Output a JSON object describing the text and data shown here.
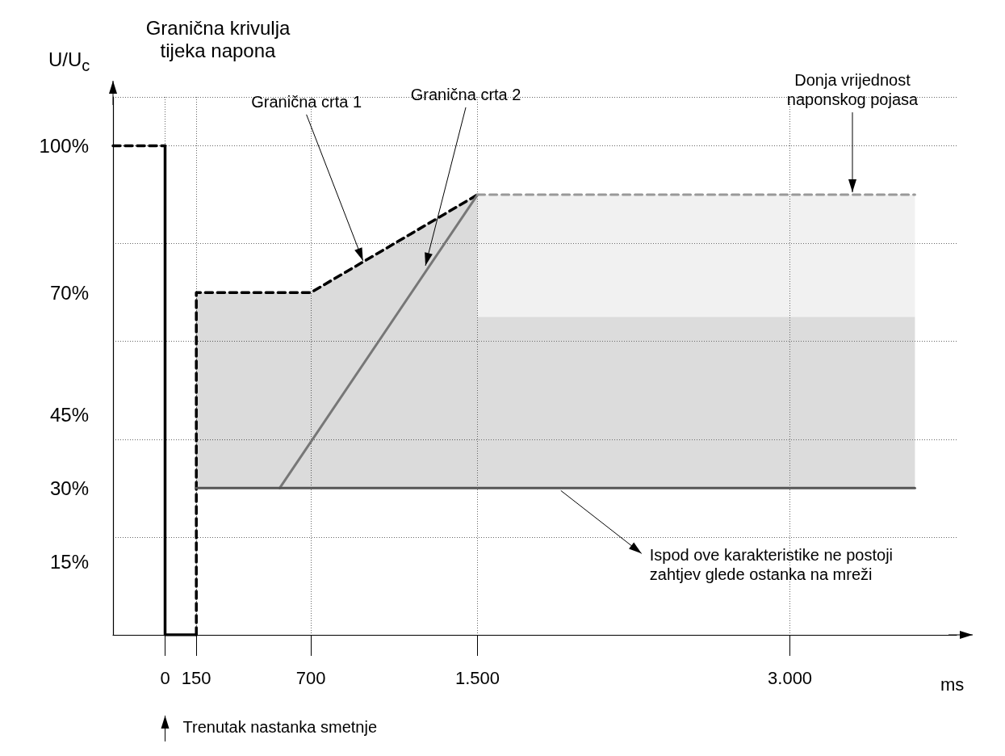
{
  "chart_data": {
    "type": "line",
    "xlabel": "ms",
    "ylabel": "U/U$_{c}$",
    "xlim": [
      -250,
      3800
    ],
    "xticks": [
      0,
      150,
      700,
      {
        "value": 1500,
        "label": "1.500"
      },
      {
        "value": 3000,
        "label": "3.000"
      }
    ],
    "ylim": [
      0,
      110
    ],
    "yticks": [
      {
        "value": 15,
        "label": "15%"
      },
      {
        "value": 30,
        "label": "30%"
      },
      {
        "value": 45,
        "label": "45%"
      },
      {
        "value": 70,
        "label": "70%"
      },
      {
        "value": 100,
        "label": "100%"
      }
    ],
    "grid": true,
    "marker": "none",
    "series": [
      {
        "x": [
          -250,
          0
        ],
        "values": [
          100,
          100
        ],
        "color": "#000000",
        "line_style": "dashed"
      },
      {
        "x": [
          0,
          0,
          150
        ],
        "values": [
          100,
          0,
          0
        ],
        "color": "#000000",
        "line_style": "solid"
      },
      {
        "x": [
          150,
          150,
          700,
          1500
        ],
        "values": [
          0,
          70,
          70,
          90
        ],
        "lower": [
          0,
          30,
          30,
          30
        ],
        "upper": [
          0,
          70,
          70,
          90
        ],
        "color": "#000000",
        "line_style": "dashed"
      },
      {
        "x": [
          550,
          1500
        ],
        "values": [
          30,
          90
        ],
        "color": "#777777",
        "line_style": "solid"
      },
      {
        "x": [
          150,
          1500,
          1500,
          3600
        ],
        "values": [
          30,
          30,
          30,
          30
        ],
        "lower": [
          30,
          30,
          30,
          30
        ],
        "upper": [
          30,
          30,
          65,
          65
        ],
        "color": "#555555",
        "line_style": "solid"
      },
      {
        "x": [
          1500,
          3600
        ],
        "values": [
          90,
          90
        ],
        "lower": [
          30,
          30
        ],
        "upper": [
          90,
          90
        ],
        "color": "#999999",
        "line_style": "dashed"
      }
    ],
    "annotations": [
      "Granična krivulja\ntijeka napona",
      {
        "text": "Granična crta 1",
        "x": 950,
        "y": 76
      },
      {
        "text": "Granična crta 2",
        "x": 1250,
        "y": 75
      },
      {
        "text": "Donja vrijednost\nnaponskog pojasa",
        "x": 3300,
        "y": 90
      },
      {
        "text": "Ispod ove karakteristike ne postoji\nzahtjev glede ostanka na mreži",
        "x": 1900,
        "y": 30
      },
      "Trenutak nastanka smetnje"
    ]
  }
}
